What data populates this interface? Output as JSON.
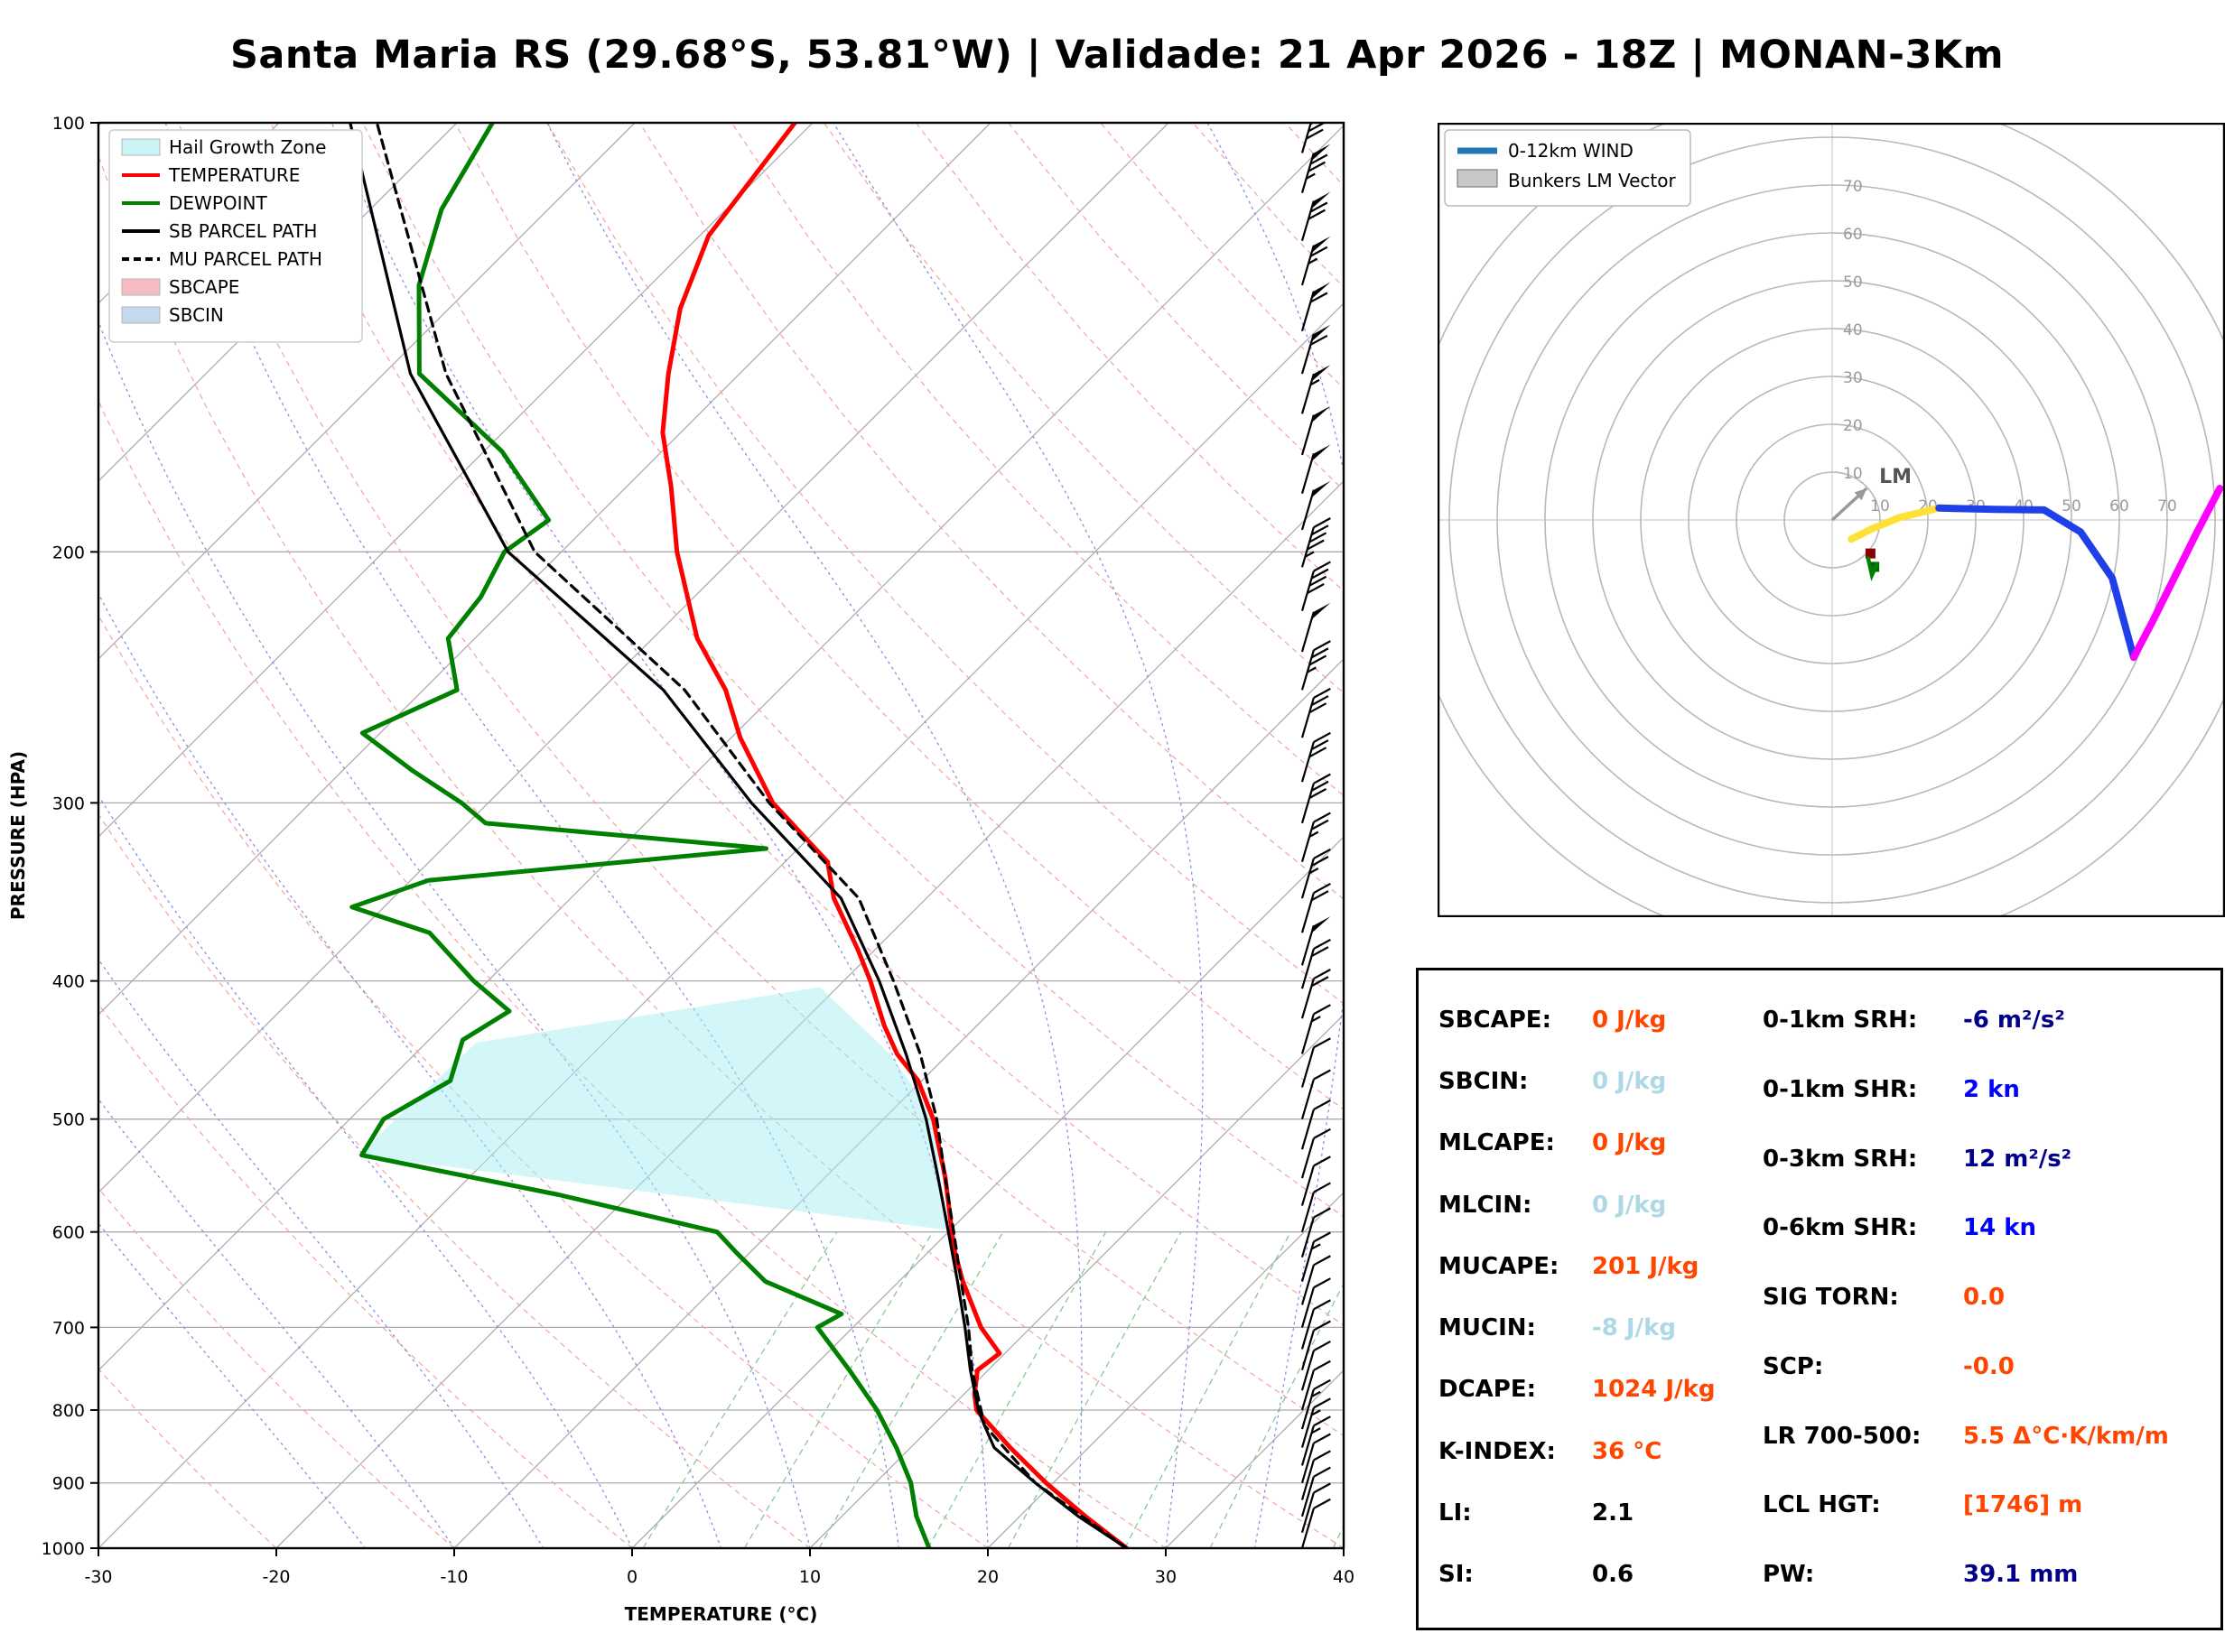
{
  "title": "Santa Maria RS (29.68°S, 53.81°W) | Validade: 21 Apr 2026 - 18Z | MONAN-3Km",
  "chart_data": [
    {
      "type": "line",
      "name": "skewt_sounding",
      "xlabel": "TEMPERATURE (°C)",
      "ylabel": "PRESSURE (HPA)",
      "x_ticks": [
        -30,
        -20,
        -10,
        0,
        10,
        20,
        30,
        40
      ],
      "y_ticks": [
        100,
        200,
        300,
        400,
        500,
        600,
        700,
        800,
        900,
        1000
      ],
      "x_range": [
        -30,
        40
      ],
      "p_range": [
        100,
        1000
      ],
      "skew_deg": 45,
      "grid": true,
      "legend_position": "upper left",
      "legend": [
        {
          "label": "Hail Growth Zone",
          "swatch": "patch",
          "color": "#c9f3f5"
        },
        {
          "label": "TEMPERATURE",
          "swatch": "line",
          "color": "#ff0000"
        },
        {
          "label": "DEWPOINT",
          "swatch": "line",
          "color": "#008000"
        },
        {
          "label": "SB PARCEL PATH",
          "swatch": "line",
          "color": "#000000"
        },
        {
          "label": "MU PARCEL PATH",
          "swatch": "dashed-line",
          "color": "#000000"
        },
        {
          "label": "SBCAPE",
          "swatch": "patch",
          "color": "#f5bcc4"
        },
        {
          "label": "SBCIN",
          "swatch": "patch",
          "color": "#c3d9ee"
        }
      ],
      "series": [
        {
          "name": "TEMPERATURE",
          "color": "#ff0000",
          "style": "solid",
          "points_p_T": [
            [
              1000,
              27.8
            ],
            [
              950,
              23.7
            ],
            [
              900,
              19.6
            ],
            [
              850,
              15.6
            ],
            [
              800,
              11.6
            ],
            [
              780,
              10.6
            ],
            [
              750,
              9.4
            ],
            [
              730,
              9.7
            ],
            [
              700,
              7.2
            ],
            [
              650,
              3.6
            ],
            [
              620,
              1.5
            ],
            [
              600,
              0.2
            ],
            [
              570,
              -1.8
            ],
            [
              550,
              -3.2
            ],
            [
              500,
              -7.2
            ],
            [
              470,
              -10.2
            ],
            [
              450,
              -12.9
            ],
            [
              430,
              -15.2
            ],
            [
              400,
              -18.5
            ],
            [
              380,
              -21.0
            ],
            [
              350,
              -25.2
            ],
            [
              330,
              -27.6
            ],
            [
              300,
              -34.0
            ],
            [
              270,
              -39.5
            ],
            [
              250,
              -43.0
            ],
            [
              230,
              -47.5
            ],
            [
              200,
              -53.5
            ],
            [
              180,
              -57.5
            ],
            [
              165,
              -61.0
            ],
            [
              150,
              -64.0
            ],
            [
              135,
              -67.0
            ],
            [
              120,
              -69.5
            ],
            [
              100,
              -71.0
            ]
          ]
        },
        {
          "name": "DEWPOINT",
          "color": "#008000",
          "style": "solid",
          "points_p_T": [
            [
              1000,
              16.7
            ],
            [
              950,
              14.2
            ],
            [
              900,
              12.0
            ],
            [
              850,
              9.2
            ],
            [
              800,
              6.0
            ],
            [
              750,
              2.2
            ],
            [
              700,
              -2.0
            ],
            [
              685,
              -1.4
            ],
            [
              650,
              -7.5
            ],
            [
              620,
              -10.8
            ],
            [
              600,
              -13.0
            ],
            [
              565,
              -24.0
            ],
            [
              530,
              -37.3
            ],
            [
              500,
              -38.1
            ],
            [
              470,
              -36.5
            ],
            [
              440,
              -38.1
            ],
            [
              420,
              -37.1
            ],
            [
              400,
              -40.8
            ],
            [
              370,
              -46.0
            ],
            [
              355,
              -51.8
            ],
            [
              340,
              -49.0
            ],
            [
              323,
              -31.8
            ],
            [
              310,
              -49.0
            ],
            [
              300,
              -51.5
            ],
            [
              285,
              -56.0
            ],
            [
              268,
              -61.0
            ],
            [
              250,
              -58.1
            ],
            [
              230,
              -61.5
            ],
            [
              215,
              -62.0
            ],
            [
              200,
              -63.2
            ],
            [
              190,
              -62.5
            ],
            [
              170,
              -69.0
            ],
            [
              150,
              -78.0
            ],
            [
              130,
              -83.0
            ],
            [
              115,
              -86.0
            ],
            [
              100,
              -88.0
            ]
          ]
        },
        {
          "name": "SB PARCEL PATH",
          "color": "#000000",
          "style": "solid",
          "points_p_T": [
            [
              1000,
              27.8
            ],
            [
              950,
              23.3
            ],
            [
              900,
              19.0
            ],
            [
              850,
              14.7
            ],
            [
              820,
              12.9
            ],
            [
              800,
              11.7
            ],
            [
              750,
              9.0
            ],
            [
              700,
              6.3
            ],
            [
              650,
              3.3
            ],
            [
              600,
              0.0
            ],
            [
              550,
              -3.6
            ],
            [
              500,
              -7.6
            ],
            [
              450,
              -12.4
            ],
            [
              400,
              -18.0
            ],
            [
              350,
              -24.8
            ],
            [
              300,
              -35.2
            ],
            [
              250,
              -46.5
            ],
            [
              200,
              -63.0
            ],
            [
              150,
              -78.5
            ],
            [
              100,
              -96.0
            ]
          ]
        },
        {
          "name": "MU PARCEL PATH",
          "color": "#000000",
          "style": "dashed",
          "points_p_T": [
            [
              1000,
              27.8
            ],
            [
              900,
              19.0
            ],
            [
              820,
              12.9
            ],
            [
              750,
              9.1
            ],
            [
              700,
              6.5
            ],
            [
              650,
              3.5
            ],
            [
              600,
              0.3
            ],
            [
              550,
              -3.2
            ],
            [
              500,
              -7.0
            ],
            [
              450,
              -11.6
            ],
            [
              400,
              -17.2
            ],
            [
              350,
              -23.8
            ],
            [
              300,
              -34.2
            ],
            [
              250,
              -45.3
            ],
            [
              200,
              -61.5
            ],
            [
              150,
              -76.5
            ],
            [
              100,
              -94.5
            ]
          ]
        }
      ],
      "hail_growth_zone_T_p": [
        [
          -37.5,
          530
        ],
        [
          -37.2,
          442
        ],
        [
          -21.0,
          404
        ],
        [
          -13.3,
          450
        ],
        [
          -7.1,
          500
        ],
        [
          -3.5,
          550
        ],
        [
          -0.2,
          598
        ]
      ],
      "wind_barbs_p_kt": [
        [
          1000,
          8
        ],
        [
          975,
          10
        ],
        [
          950,
          10
        ],
        [
          925,
          12
        ],
        [
          900,
          12
        ],
        [
          875,
          13
        ],
        [
          850,
          15
        ],
        [
          825,
          14
        ],
        [
          800,
          12
        ],
        [
          775,
          10
        ],
        [
          750,
          10
        ],
        [
          725,
          10
        ],
        [
          700,
          12
        ],
        [
          675,
          12
        ],
        [
          650,
          13
        ],
        [
          625,
          12
        ],
        [
          600,
          10
        ],
        [
          575,
          10
        ],
        [
          550,
          10
        ],
        [
          525,
          10
        ],
        [
          500,
          10
        ],
        [
          475,
          12
        ],
        [
          450,
          15
        ],
        [
          425,
          18
        ],
        [
          405,
          20
        ],
        [
          390,
          50
        ],
        [
          370,
          22
        ],
        [
          350,
          25
        ],
        [
          330,
          25
        ],
        [
          310,
          28
        ],
        [
          290,
          30
        ],
        [
          270,
          32
        ],
        [
          250,
          35
        ],
        [
          235,
          50
        ],
        [
          220,
          40
        ],
        [
          205,
          45
        ],
        [
          193,
          48
        ],
        [
          182,
          50
        ],
        [
          171,
          52
        ],
        [
          160,
          55
        ],
        [
          150,
          58
        ],
        [
          140,
          60
        ],
        [
          130,
          65
        ],
        [
          121,
          70
        ],
        [
          112,
          75
        ],
        [
          105,
          80
        ],
        [
          100,
          85
        ]
      ]
    },
    {
      "type": "line",
      "name": "hodograph",
      "ring_interval_kt": 10,
      "ring_labels": [
        10,
        20,
        30,
        40,
        50,
        60,
        70
      ],
      "legend": [
        {
          "label": "0-12km WIND",
          "swatch": "line",
          "color": "#1f77b4"
        },
        {
          "label": "Bunkers LM Vector",
          "swatch": "patch",
          "color": "#c8c8c8"
        }
      ],
      "lm_label": "LM",
      "lm_vector_uv": [
        7.2,
        6.6
      ],
      "trace_segments": [
        {
          "color": "#ffe135",
          "points_uv": [
            [
              4,
              -4
            ],
            [
              8,
              -2
            ],
            [
              14,
              0.5
            ],
            [
              22.3,
              2.5
            ]
          ]
        },
        {
          "color": "#1f40e8",
          "points_uv": [
            [
              22.3,
              2.5
            ],
            [
              34,
              2.2
            ],
            [
              44.3,
              2.1
            ],
            [
              51.9,
              -2.5
            ],
            [
              58.5,
              -12.1
            ],
            [
              63,
              -28.7
            ]
          ]
        },
        {
          "color": "#ff00ff",
          "points_uv": [
            [
              63,
              -28.7
            ],
            [
              67,
              -21.1
            ],
            [
              76,
              -3.0
            ],
            [
              81,
              6.6
            ]
          ]
        }
      ],
      "markers": [
        {
          "shape": "square",
          "color": "#8b0000",
          "uv": [
            8,
            -7
          ]
        },
        {
          "shape": "square",
          "color": "#006400",
          "uv": [
            8.8,
            -9.8
          ]
        },
        {
          "shape": "line",
          "color": "#008000",
          "uv_line": [
            [
              7.5,
              -8
            ],
            [
              8.3,
              -11.5
            ],
            [
              9.3,
              -9.3
            ]
          ]
        }
      ]
    }
  ],
  "indices": {
    "left": [
      {
        "label": "SBCAPE:",
        "value": "0 J/kg",
        "color": "#ff4500"
      },
      {
        "label": "SBCIN:",
        "value": "0 J/kg",
        "color": "#add8e6"
      },
      {
        "label": "MLCAPE:",
        "value": "0 J/kg",
        "color": "#ff4500"
      },
      {
        "label": "MLCIN:",
        "value": "0 J/kg",
        "color": "#add8e6"
      },
      {
        "label": "MUCAPE:",
        "value": "201 J/kg",
        "color": "#ff4500"
      },
      {
        "label": "MUCIN:",
        "value": "-8 J/kg",
        "color": "#add8e6"
      },
      {
        "label": "DCAPE:",
        "value": "1024 J/kg",
        "color": "#ff4500"
      },
      {
        "label": "K-INDEX:",
        "value": "36 °C",
        "color": "#ff4500"
      },
      {
        "label": "LI:",
        "value": "2.1",
        "color": "#000000"
      },
      {
        "label": "SI:",
        "value": "0.6",
        "color": "#000000"
      }
    ],
    "right": [
      {
        "label": "0-1km SRH:",
        "value": "-6 m²/s²",
        "color": "#00008b"
      },
      {
        "label": "0-1km SHR:",
        "value": "2 kn",
        "color": "#0000ff"
      },
      {
        "label": "0-3km SRH:",
        "value": "12 m²/s²",
        "color": "#00008b"
      },
      {
        "label": "0-6km SHR:",
        "value": "14 kn",
        "color": "#0000ff"
      },
      {
        "label": "SIG TORN:",
        "value": "0.0",
        "color": "#ff4500"
      },
      {
        "label": "SCP:",
        "value": "-0.0",
        "color": "#ff4500"
      },
      {
        "label": "LR 700-500:",
        "value": "5.5 Δ°C·K/km/m",
        "color": "#ff4500"
      },
      {
        "label": "LCL HGT:",
        "value": "[1746] m",
        "color": "#ff4500"
      },
      {
        "label": "PW:",
        "value": "39.1 mm",
        "color": "#00008b"
      }
    ]
  }
}
